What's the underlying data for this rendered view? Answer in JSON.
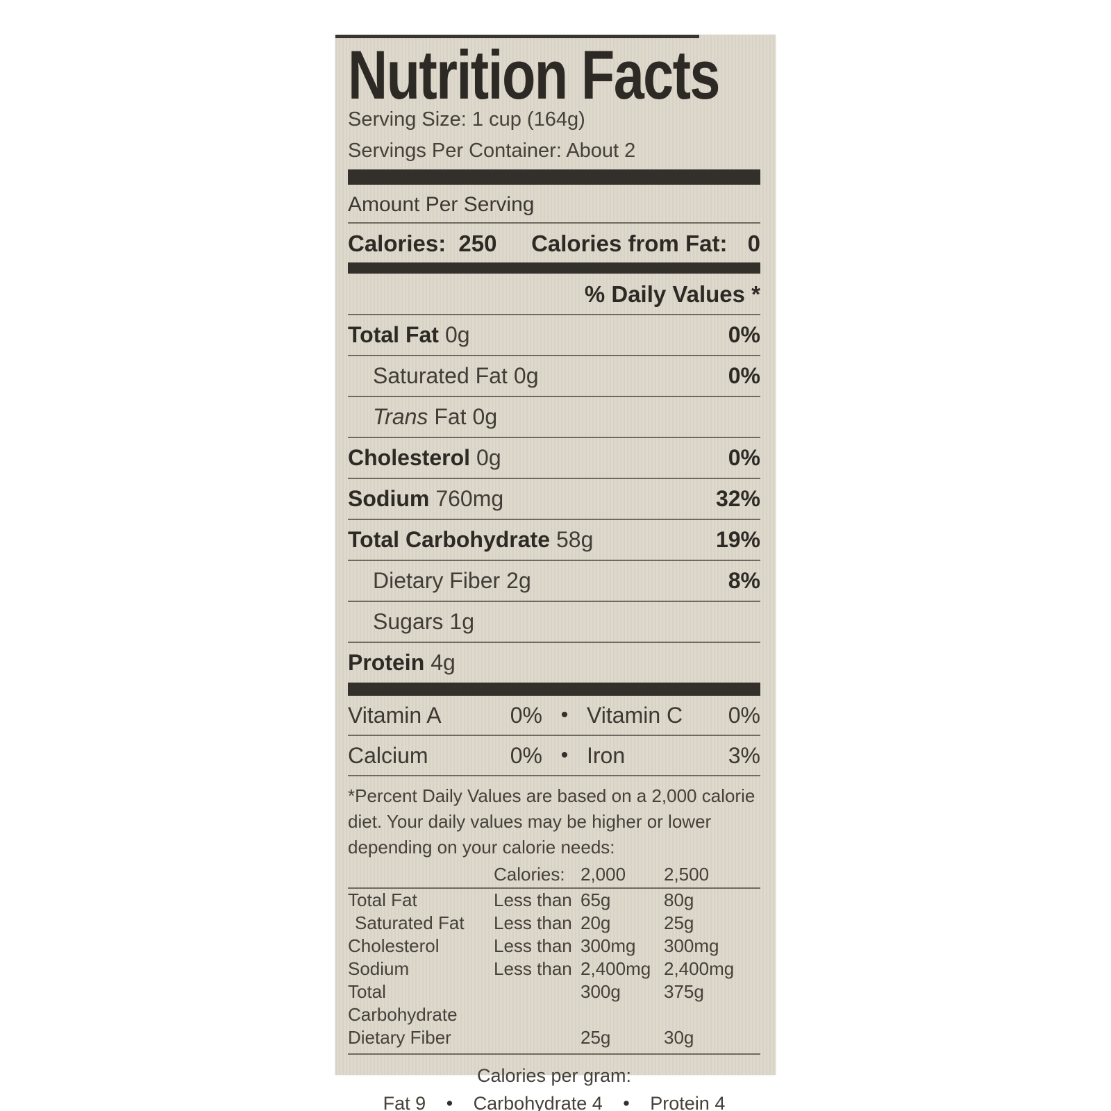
{
  "label": {
    "title": "Nutrition Facts",
    "serving_size": "Serving Size: 1 cup (164g)",
    "servings_per_container": "Servings Per Container: About 2",
    "amount_per_serving": "Amount Per Serving",
    "calories": {
      "label": "Calories:",
      "value": "250"
    },
    "calories_from_fat": {
      "label": "Calories from Fat:",
      "value": "0"
    },
    "daily_values_header": "% Daily Values *",
    "nutrients": [
      {
        "name": "Total Fat",
        "amount": "0g",
        "dv": "0%"
      },
      {
        "name": "Saturated Fat",
        "amount": "0g",
        "dv": "0%"
      },
      {
        "name_italic": "Trans",
        "name_rest": " Fat",
        "amount": "0g",
        "dv": ""
      },
      {
        "name": "Cholesterol",
        "amount": "0g",
        "dv": "0%"
      },
      {
        "name": "Sodium",
        "amount": "760mg",
        "dv": "32%"
      },
      {
        "name": "Total Carbohydrate",
        "amount": "58g",
        "dv": "19%"
      },
      {
        "name": "Dietary Fiber",
        "amount": "2g",
        "dv": "8%"
      },
      {
        "name": "Sugars",
        "amount": "1g",
        "dv": ""
      },
      {
        "name": "Protein",
        "amount": "4g",
        "dv": ""
      }
    ],
    "vitamins": [
      {
        "left_name": "Vitamin A",
        "left_value": "0%",
        "bullet": "•",
        "right_name": "Vitamin C",
        "right_value": "0%"
      },
      {
        "left_name": "Calcium",
        "left_value": "0%",
        "bullet": "•",
        "right_name": "Iron",
        "right_value": "3%"
      }
    ],
    "footnote": "*Percent Daily Values are based on a 2,000 calorie diet. Your daily values may be higher or lower depending on your calorie needs:",
    "dv_table": {
      "header": {
        "calories_label": "Calories:",
        "col_2000": "2,000",
        "col_2500": "2,500"
      },
      "rows": [
        {
          "name": "Total Fat",
          "qualifier": "Less than",
          "v2000": "65g",
          "v2500": "80g"
        },
        {
          "name": "Saturated Fat",
          "qualifier": "Less than",
          "v2000": "20g",
          "v2500": "25g"
        },
        {
          "name": "Cholesterol",
          "qualifier": "Less than",
          "v2000": "300mg",
          "v2500": "300mg"
        },
        {
          "name": "Sodium",
          "qualifier": "Less than",
          "v2000": "2,400mg",
          "v2500": "2,400mg"
        },
        {
          "name": "Total Carbohydrate",
          "qualifier": "",
          "v2000": "300g",
          "v2500": "375g"
        },
        {
          "name": "Dietary Fiber",
          "qualifier": "",
          "v2000": "25g",
          "v2500": "30g"
        }
      ]
    },
    "calories_per_gram": {
      "title": "Calories per gram:",
      "fat": "Fat 9",
      "bullet": "•",
      "carbohydrate": "Carbohydrate 4",
      "protein": "Protein 4"
    },
    "colors": {
      "label_background": "#dcd7ca",
      "text": "#413d36",
      "bold_text": "#2d2a25",
      "thin_rule": "#6f695f",
      "thick_bar": "#33302b",
      "page_background": "#ffffff"
    }
  }
}
